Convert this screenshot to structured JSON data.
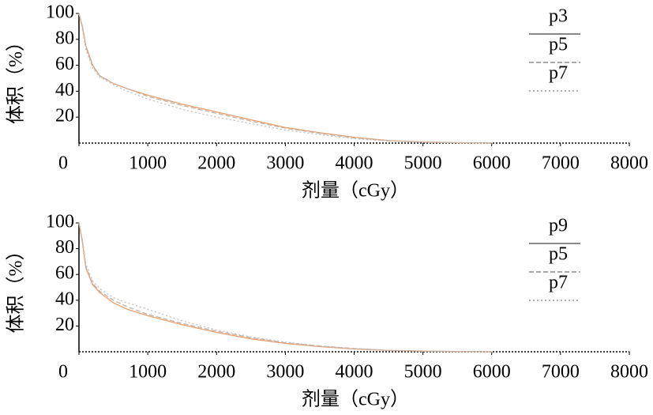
{
  "chart_data": [
    {
      "type": "line",
      "x_label": "剂量（cGy）",
      "y_label": "体积（%）",
      "x": [
        0,
        50,
        100,
        200,
        300,
        500,
        700,
        1000,
        1500,
        2000,
        2500,
        3000,
        3500,
        4000,
        4500,
        5000,
        5500,
        6000
      ],
      "series": [
        {
          "name": "p3",
          "color": "#e8a070",
          "dash": "none",
          "legend_color": "#888888",
          "values": [
            100,
            90,
            75,
            60,
            52,
            46,
            42,
            37,
            30,
            24,
            18,
            12,
            8,
            4.5,
            2,
            0.8,
            0.3,
            0
          ]
        },
        {
          "name": "p5",
          "color": "#c8b0a0",
          "dash": "6 3",
          "legend_color": "#aaaaaa",
          "values": [
            100,
            89,
            74,
            59,
            52,
            46,
            42,
            36,
            29,
            23,
            17,
            11.5,
            7.5,
            4,
            1.8,
            0.7,
            0.3,
            0
          ]
        },
        {
          "name": "p7",
          "color": "#c0c0c0",
          "dash": "2 3",
          "legend_color": "#b0b0b0",
          "values": [
            100,
            88,
            72,
            58,
            51,
            45,
            40,
            34,
            26,
            20,
            15,
            10,
            6.5,
            3.5,
            1.5,
            0.6,
            0.2,
            0
          ]
        }
      ],
      "xlim": [
        0,
        8000
      ],
      "ylim": [
        0,
        100
      ],
      "xticks": [
        0,
        1000,
        2000,
        3000,
        4000,
        5000,
        6000,
        7000,
        8000
      ],
      "yticks": [
        20,
        40,
        60,
        80,
        100
      ]
    },
    {
      "type": "line",
      "x_label": "剂量（cGy）",
      "y_label": "体积（%）",
      "x": [
        0,
        50,
        100,
        200,
        300,
        500,
        700,
        1000,
        1500,
        2000,
        2500,
        3000,
        3500,
        4000,
        4500,
        5000,
        5500,
        6000
      ],
      "series": [
        {
          "name": "p9",
          "color": "#e8a070",
          "dash": "none",
          "legend_color": "#888888",
          "values": [
            100,
            85,
            65,
            52,
            46,
            38,
            33,
            28,
            21,
            15,
            10,
            6.5,
            4,
            2.2,
            1,
            0.5,
            0.2,
            0
          ]
        },
        {
          "name": "p5",
          "color": "#c8b0a0",
          "dash": "6 3",
          "legend_color": "#aaaaaa",
          "values": [
            100,
            86,
            66,
            53,
            47,
            40,
            35,
            29,
            22,
            16,
            11,
            7,
            4.5,
            2.5,
            1.1,
            0.5,
            0.2,
            0
          ]
        },
        {
          "name": "p7",
          "color": "#c0c0c0",
          "dash": "2 3",
          "legend_color": "#b0b0b0",
          "values": [
            100,
            87,
            68,
            55,
            49,
            42,
            38,
            33,
            24,
            17,
            11.5,
            7.5,
            4.5,
            2.5,
            1.1,
            0.5,
            0.2,
            0
          ]
        }
      ],
      "xlim": [
        0,
        8000
      ],
      "ylim": [
        0,
        100
      ],
      "xticks": [
        0,
        1000,
        2000,
        3000,
        4000,
        5000,
        6000,
        7000,
        8000
      ],
      "yticks": [
        20,
        40,
        60,
        80,
        100
      ]
    }
  ]
}
